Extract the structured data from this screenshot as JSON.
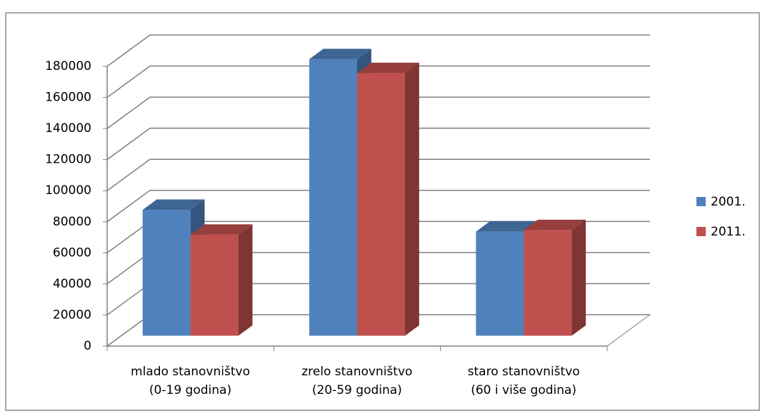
{
  "chart_data": {
    "type": "bar3d",
    "categories": [
      "mlado stanovništvo\n(0-19 godina)",
      "zrelo stanovništvo\n(20-59 godina)",
      "staro stanovništvo\n(60 i više godina)"
    ],
    "series": [
      {
        "name": "2001.",
        "color": "#4f81bd",
        "values": [
          81000,
          178000,
          67000
        ]
      },
      {
        "name": "2011.",
        "color": "#c0504d",
        "values": [
          65000,
          169000,
          68000
        ]
      }
    ],
    "ylim": [
      0,
      180000
    ],
    "yticks": [
      0,
      20000,
      40000,
      60000,
      80000,
      100000,
      120000,
      140000,
      160000,
      180000
    ],
    "grid": true,
    "legend": "right"
  }
}
